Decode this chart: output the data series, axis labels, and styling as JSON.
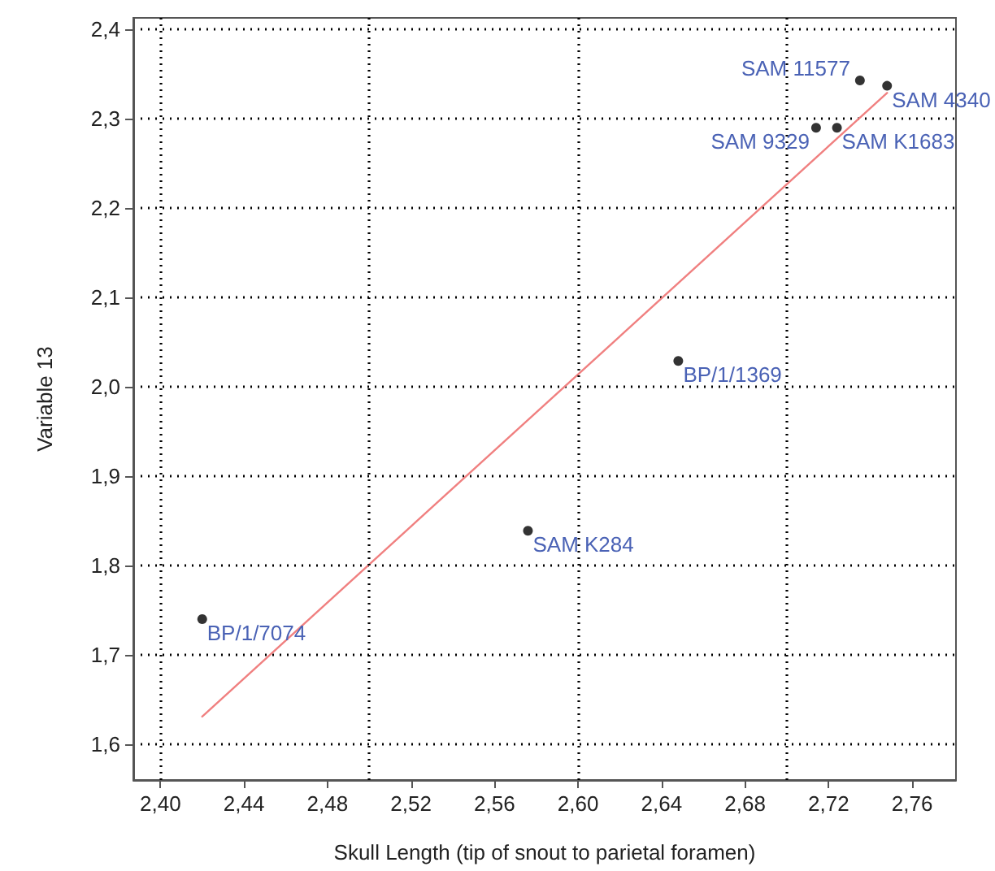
{
  "chart_data": {
    "type": "scatter",
    "xlabel": "Skull Length (tip of snout to parietal foramen)",
    "ylabel": "Variable 13",
    "series": [
      {
        "color": "#000000",
        "marker": "circle",
        "x": [
          2.42,
          2.576,
          2.648,
          2.714,
          2.724,
          2.735,
          2.748
        ],
        "values": [
          1.74,
          1.839,
          2.029,
          2.29,
          2.29,
          2.343,
          2.337
        ]
      },
      {
        "type": "line",
        "color": "#f08080",
        "marker": "none",
        "line_style": "solid",
        "x": [
          2.42,
          2.748
        ],
        "values": [
          1.631,
          2.329
        ]
      }
    ],
    "annotations": [
      {
        "text": "BP/1/7074",
        "x": 2.42,
        "y": 1.74
      },
      {
        "text": "SAM K284",
        "x": 2.576,
        "y": 1.839
      },
      {
        "text": "BP/1/1369",
        "x": 2.648,
        "y": 2.029
      },
      {
        "text": "SAM 9329",
        "x": 2.714,
        "y": 2.29
      },
      {
        "text": "SAM K1683",
        "x": 2.724,
        "y": 2.29
      },
      {
        "text": "SAM 11577",
        "x": 2.735,
        "y": 2.343
      },
      {
        "text": "SAM 4340",
        "x": 2.748,
        "y": 2.337
      }
    ],
    "xlim": [
      2.387,
      2.781
    ],
    "xticks": [
      {
        "value": 2.4,
        "label": "2,40"
      },
      {
        "value": 2.44,
        "label": "2,44"
      },
      {
        "value": 2.48,
        "label": "2,48"
      },
      {
        "value": 2.52,
        "label": "2,52"
      },
      {
        "value": 2.56,
        "label": "2,56"
      },
      {
        "value": 2.6,
        "label": "2,60"
      },
      {
        "value": 2.64,
        "label": "2,64"
      },
      {
        "value": 2.68,
        "label": "2,68"
      },
      {
        "value": 2.72,
        "label": "2,72"
      },
      {
        "value": 2.76,
        "label": "2,76"
      }
    ],
    "ylim": [
      1.56,
      2.413
    ],
    "yticks": [
      {
        "value": 1.6,
        "label": "1,6"
      },
      {
        "value": 1.7,
        "label": "1,7"
      },
      {
        "value": 1.8,
        "label": "1,8"
      },
      {
        "value": 1.9,
        "label": "1,9"
      },
      {
        "value": 2.0,
        "label": "2,0"
      },
      {
        "value": 2.1,
        "label": "2,1"
      },
      {
        "value": 2.2,
        "label": "2,2"
      },
      {
        "value": 2.3,
        "label": "2,3"
      },
      {
        "value": 2.4,
        "label": "2,4"
      }
    ],
    "grid": "y",
    "ref_lines": [
      {
        "axis": "x",
        "value": 2.4,
        "color": "#000000",
        "line_style": "dotted"
      },
      {
        "axis": "x",
        "value": 2.5,
        "color": "#000000",
        "line_style": "dotted"
      },
      {
        "axis": "x",
        "value": 2.6,
        "color": "#000000",
        "line_style": "dotted"
      },
      {
        "axis": "x",
        "value": 2.7,
        "color": "#000000",
        "line_style": "dotted"
      }
    ]
  }
}
